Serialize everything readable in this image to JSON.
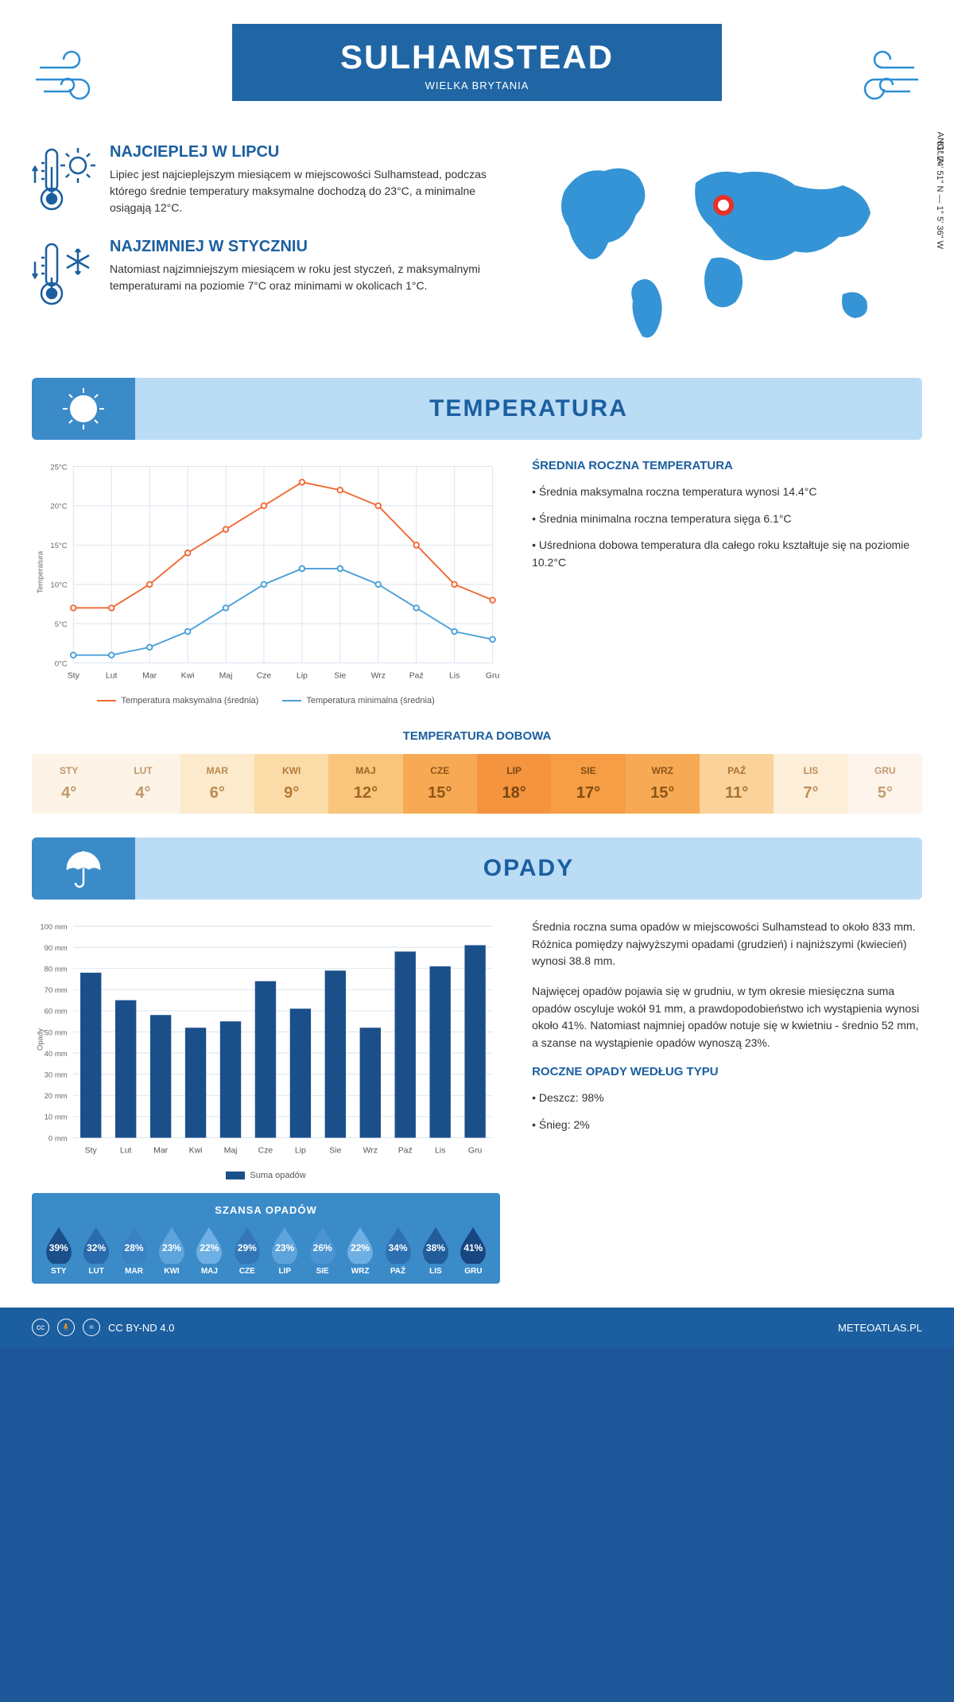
{
  "header": {
    "title": "SULHAMSTEAD",
    "country": "WIELKA BRYTANIA"
  },
  "location": {
    "coords": "51° 24' 51\" N — 1° 5' 36\" W",
    "region": "ANGLIA"
  },
  "facts": {
    "hot": {
      "title": "NAJCIEPLEJ W LIPCU",
      "text": "Lipiec jest najcieplejszym miesiącem w miejscowości Sulhamstead, podczas którego średnie temperatury maksymalne dochodzą do 23°C, a minimalne osiągają 12°C."
    },
    "cold": {
      "title": "NAJZIMNIEJ W STYCZNIU",
      "text": "Natomiast najzimniejszym miesiącem w roku jest styczeń, z maksymalnymi temperaturami na poziomie 7°C oraz minimami w okolicach 1°C."
    }
  },
  "sections": {
    "temp": "TEMPERATURA",
    "rain": "OPADY"
  },
  "months": [
    "Sty",
    "Lut",
    "Mar",
    "Kwi",
    "Maj",
    "Cze",
    "Lip",
    "Sie",
    "Wrz",
    "Paź",
    "Lis",
    "Gru"
  ],
  "months_upper": [
    "STY",
    "LUT",
    "MAR",
    "KWI",
    "MAJ",
    "CZE",
    "LIP",
    "SIE",
    "WRZ",
    "PAŹ",
    "LIS",
    "GRU"
  ],
  "temp_chart": {
    "type": "line",
    "ylabel": "Temperatura",
    "ylim": [
      0,
      25
    ],
    "ytick_step": 5,
    "ytick_suffix": "°C",
    "series": {
      "max": {
        "label": "Temperatura maksymalna (średnia)",
        "color": "#f26a34",
        "values": [
          7,
          7,
          10,
          14,
          17,
          20,
          23,
          22,
          20,
          15,
          10,
          8
        ]
      },
      "min": {
        "label": "Temperatura minimalna (średnia)",
        "color": "#4a9fd8",
        "values": [
          1,
          1,
          2,
          4,
          7,
          10,
          12,
          12,
          10,
          7,
          4,
          3
        ]
      }
    },
    "grid_color": "#d9e3ee",
    "bg": "#ffffff"
  },
  "temp_side": {
    "title": "ŚREDNIA ROCZNA TEMPERATURA",
    "items": [
      "Średnia maksymalna roczna temperatura wynosi 14.4°C",
      "Średnia minimalna roczna temperatura sięga 6.1°C",
      "Uśredniona dobowa temperatura dla całego roku kształtuje się na poziomie 10.2°C"
    ]
  },
  "daily_temp": {
    "title": "TEMPERATURA DOBOWA",
    "values": [
      "4°",
      "4°",
      "6°",
      "9°",
      "12°",
      "15°",
      "18°",
      "17°",
      "15°",
      "11°",
      "7°",
      "5°"
    ],
    "bg_colors": [
      "#fdf3e7",
      "#fdf3e7",
      "#fceacd",
      "#fbdca8",
      "#f9c57a",
      "#f7aa53",
      "#f4943e",
      "#f69d46",
      "#f7aa53",
      "#fad29a",
      "#fceed8",
      "#fdf5ec"
    ],
    "text_colors": [
      "#c0976a",
      "#c0976a",
      "#bd8a4f",
      "#b57a35",
      "#a06424",
      "#8d5518",
      "#7a460f",
      "#824c12",
      "#8d5518",
      "#ac7330",
      "#bd8d56",
      "#c49b72"
    ]
  },
  "rain_chart": {
    "type": "bar",
    "ylabel": "Opady",
    "ylim": [
      0,
      100
    ],
    "ytick_step": 10,
    "ytick_suffix": " mm",
    "values": [
      78,
      65,
      58,
      52,
      55,
      74,
      61,
      79,
      52,
      88,
      81,
      91
    ],
    "bar_color": "#1b4f8a",
    "grid_color": "#d9e3ee",
    "legend": "Suma opadów"
  },
  "rain_side": {
    "p1": "Średnia roczna suma opadów w miejscowości Sulhamstead to około 833 mm. Różnica pomiędzy najwyższymi opadami (grudzień) i najniższymi (kwiecień) wynosi 38.8 mm.",
    "p2": "Najwięcej opadów pojawia się w grudniu, w tym okresie miesięczna suma opadów oscyluje wokół 91 mm, a prawdopodobieństwo ich wystąpienia wynosi około 41%. Natomiast najmniej opadów notuje się w kwietniu - średnio 52 mm, a szanse na wystąpienie opadów wynoszą 23%.",
    "types_title": "ROCZNE OPADY WEDŁUG TYPU",
    "types": [
      "Deszcz: 98%",
      "Śnieg: 2%"
    ]
  },
  "rain_chance": {
    "title": "SZANSA OPADÓW",
    "values": [
      "39%",
      "32%",
      "28%",
      "23%",
      "22%",
      "29%",
      "23%",
      "26%",
      "22%",
      "34%",
      "38%",
      "41%"
    ],
    "drop_colors": [
      "#1b4f8a",
      "#2a6aad",
      "#3b82c4",
      "#5ea4dc",
      "#6eb0e3",
      "#3477b9",
      "#5ea4dc",
      "#4b93d1",
      "#6eb0e3",
      "#2e70b2",
      "#225c9b",
      "#184680"
    ]
  },
  "footer": {
    "license": "CC BY-ND 4.0",
    "site": "METEOATLAS.PL"
  }
}
